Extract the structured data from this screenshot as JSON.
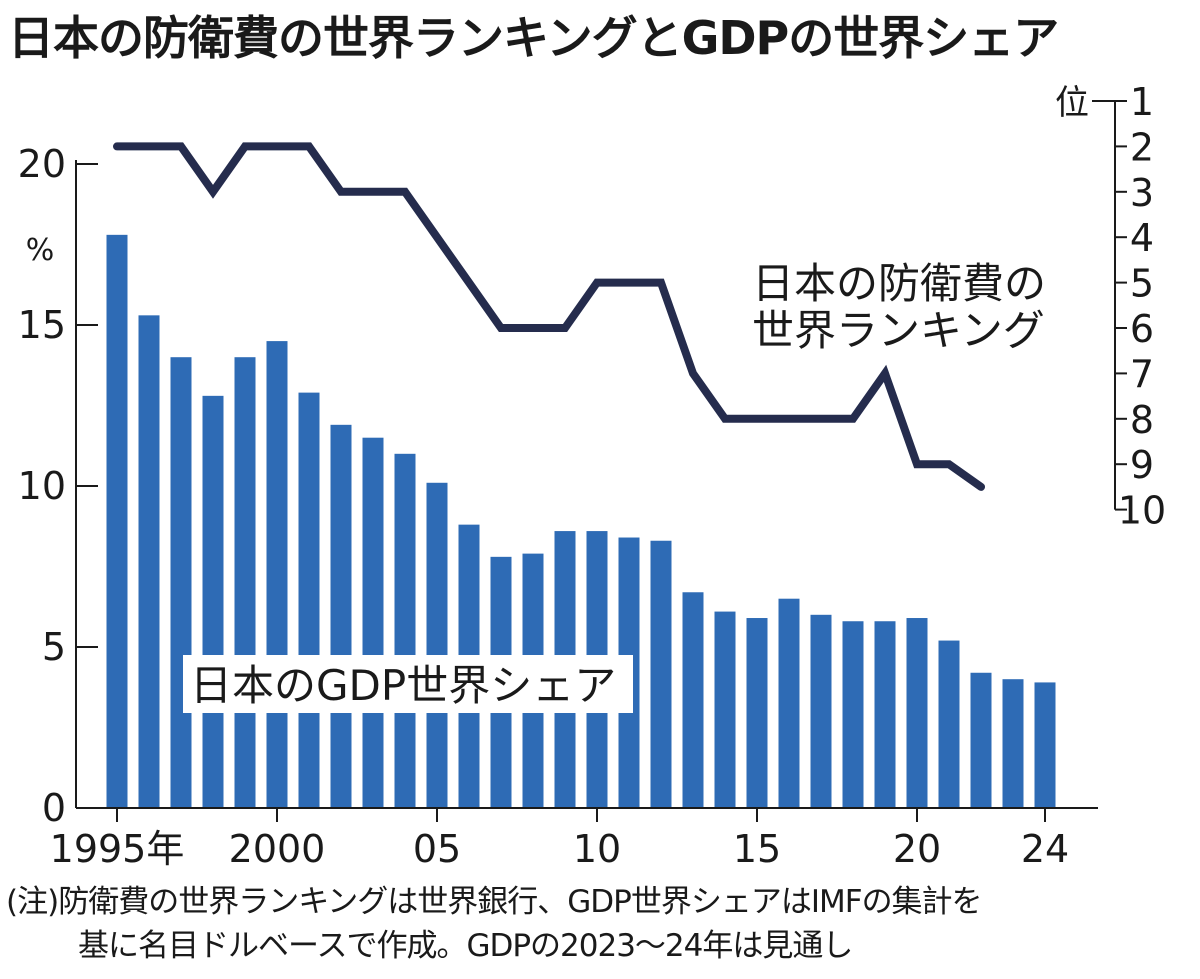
{
  "title": "日本の防衛費の世界ランキングとGDPの世界シェア",
  "note": {
    "line1": "(注)防衛費の世界ランキングは世界銀行、GDP世界シェアはIMFの集計を",
    "line2": "基に名目ドルベースで作成。GDPの2023〜24年は見通し"
  },
  "colors": {
    "bar": "#2e6bb5",
    "line": "#252c4d",
    "axis": "#1a1a1a"
  },
  "chart_data": {
    "type": "bar+line",
    "title": "日本の防衛費の世界ランキングとGDPの世界シェア",
    "years": [
      1995,
      1996,
      1997,
      1998,
      1999,
      2000,
      2001,
      2002,
      2003,
      2004,
      2005,
      2006,
      2007,
      2008,
      2009,
      2010,
      2011,
      2012,
      2013,
      2014,
      2015,
      2016,
      2017,
      2018,
      2019,
      2020,
      2021,
      2022,
      2023,
      2024
    ],
    "x_tick_labels": [
      {
        "year": 1995,
        "label": "1995年"
      },
      {
        "year": 2000,
        "label": "2000"
      },
      {
        "year": 2005,
        "label": "05"
      },
      {
        "year": 2010,
        "label": "10"
      },
      {
        "year": 2015,
        "label": "15"
      },
      {
        "year": 2020,
        "label": "20"
      },
      {
        "year": 2024,
        "label": "24"
      }
    ],
    "gdp_share": {
      "name": "日本のGDP世界シェア",
      "unit": "%",
      "values": [
        17.8,
        15.3,
        14.0,
        12.8,
        14.0,
        14.5,
        12.9,
        11.9,
        11.5,
        11.0,
        10.1,
        8.8,
        7.8,
        7.9,
        8.6,
        8.6,
        8.4,
        8.3,
        6.7,
        6.1,
        5.9,
        6.5,
        6.0,
        5.8,
        5.8,
        5.9,
        5.2,
        4.2,
        4.0,
        3.9
      ]
    },
    "defense_rank": {
      "name_line1": "日本の防衛費の",
      "name_line2": "世界ランキング",
      "unit": "位",
      "years": [
        1995,
        1996,
        1997,
        1998,
        1999,
        2000,
        2001,
        2002,
        2003,
        2004,
        2005,
        2006,
        2007,
        2008,
        2009,
        2010,
        2011,
        2012,
        2013,
        2014,
        2015,
        2016,
        2017,
        2018,
        2019,
        2020,
        2021,
        2022
      ],
      "values": [
        2,
        2,
        2,
        3,
        2,
        2,
        2,
        3,
        3,
        3,
        4,
        5,
        6,
        6,
        6,
        5,
        5,
        5,
        7,
        8,
        8,
        8,
        8,
        8,
        7,
        9,
        9,
        9.5
      ]
    },
    "y_left": {
      "label": "%",
      "ticks": [
        0,
        5,
        10,
        15,
        20
      ],
      "range": [
        0,
        20
      ]
    },
    "y_right": {
      "label": "位",
      "ticks": [
        1,
        2,
        3,
        4,
        5,
        6,
        7,
        8,
        9,
        10
      ],
      "range": [
        1,
        10
      ]
    }
  }
}
